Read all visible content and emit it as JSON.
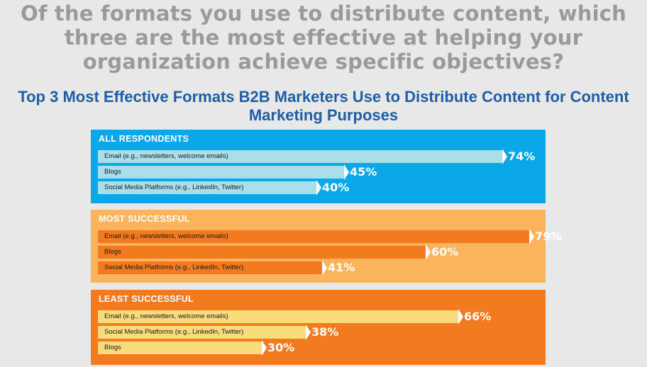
{
  "question": "Of the formats you use to distribute content, which three are the most effective at helping your organization achieve specific objectives?",
  "chart_data": {
    "type": "bar",
    "title": "Top 3 Most Effective Formats B2B Marketers Use to Distribute Content for Content Marketing Purposes",
    "unit": "%",
    "groups": [
      {
        "name": "ALL RESPONDENTS",
        "colors": {
          "panel": "#0aa8e8",
          "bar": "#a9dfea",
          "title": "#ffffff"
        },
        "items": [
          {
            "label": "Email (e.g., newsletters, welcome emails)",
            "value": 74,
            "value_label": "74%"
          },
          {
            "label": "Blogs",
            "value": 45,
            "value_label": "45%"
          },
          {
            "label": "Social Media Platforms (e.g., LinkedIn, Twitter)",
            "value": 40,
            "value_label": "40%"
          }
        ]
      },
      {
        "name": "MOST SUCCESSFUL",
        "colors": {
          "panel": "#fbb45c",
          "bar": "#f37a1f",
          "title": "#ffffff"
        },
        "items": [
          {
            "label": "Email (e.g., newsletters, welcome emails)",
            "value": 79,
            "value_label": "79%"
          },
          {
            "label": "Blogs",
            "value": 60,
            "value_label": "60%"
          },
          {
            "label": "Social Media Platforms (e.g., LinkedIn, Twitter)",
            "value": 41,
            "value_label": "41%"
          }
        ]
      },
      {
        "name": "LEAST SUCCESSFUL",
        "colors": {
          "panel": "#f37a1f",
          "bar": "#fbdc7d",
          "title": "#ffffff"
        },
        "items": [
          {
            "label": "Email (e.g., newsletters, welcome emails)",
            "value": 66,
            "value_label": "66%"
          },
          {
            "label": "Social Media Platforms (e.g., LinkedIn, Twitter)",
            "value": 38,
            "value_label": "38%"
          },
          {
            "label": "Blogs",
            "value": 30,
            "value_label": "30%"
          }
        ]
      }
    ]
  }
}
